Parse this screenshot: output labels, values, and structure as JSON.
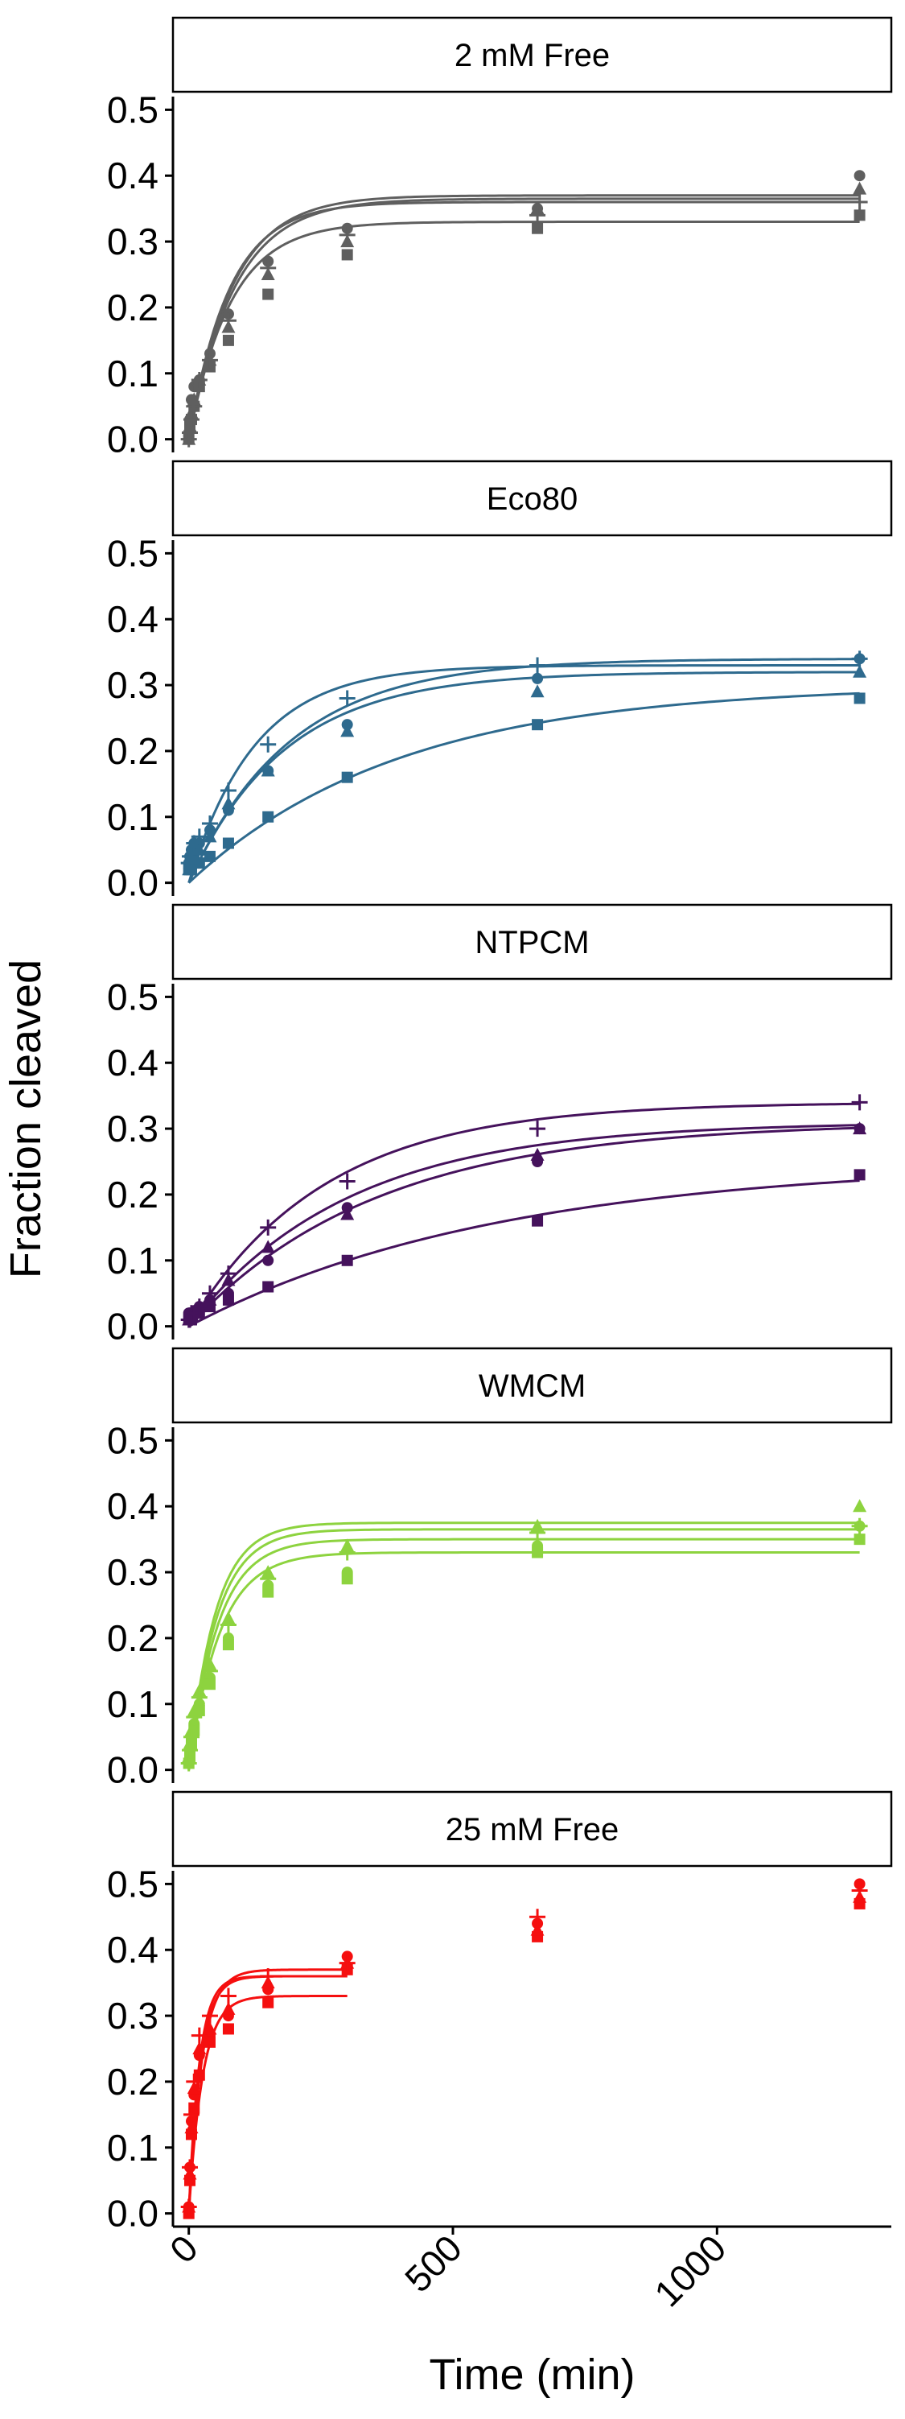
{
  "chart_data": {
    "type": "scatter",
    "xlabel": "Time (min)",
    "ylabel": "Fraction cleaved",
    "xlim": [
      -30,
      1330
    ],
    "ylim": [
      -0.02,
      0.52
    ],
    "x_ticks": [
      0,
      500,
      1000
    ],
    "y_ticks": [
      0.0,
      0.1,
      0.2,
      0.3,
      0.4,
      0.5
    ],
    "x_tick_labels": [
      "0",
      "500",
      "1000"
    ],
    "y_tick_labels": [
      "0.0",
      "0.1",
      "0.2",
      "0.3",
      "0.4",
      "0.5"
    ],
    "grid": false,
    "legend": "none",
    "marker_shapes": [
      "circle",
      "square",
      "triangle",
      "plus"
    ],
    "times": [
      0,
      2,
      5,
      10,
      20,
      40,
      75,
      150,
      300,
      660,
      1270
    ],
    "panels": [
      {
        "title": "2 mM Free",
        "color": "#5f5f5f",
        "series": [
          {
            "marker": "circle",
            "A": 0.37,
            "k": 0.012,
            "values": [
              0.0,
              0.03,
              0.06,
              0.08,
              0.09,
              0.13,
              0.19,
              0.27,
              0.32,
              0.35,
              0.4
            ]
          },
          {
            "marker": "square",
            "A": 0.33,
            "k": 0.0125,
            "values": [
              0.0,
              0.02,
              0.03,
              0.05,
              0.08,
              0.11,
              0.15,
              0.22,
              0.28,
              0.32,
              0.34
            ]
          },
          {
            "marker": "triangle",
            "A": 0.36,
            "k": 0.013,
            "values": [
              0.0,
              0.02,
              0.04,
              0.06,
              0.09,
              0.12,
              0.17,
              0.25,
              0.3,
              0.35,
              0.38
            ]
          },
          {
            "marker": "plus",
            "A": 0.365,
            "k": 0.0115,
            "values": [
              0.0,
              0.01,
              0.03,
              0.05,
              0.09,
              0.12,
              0.18,
              0.26,
              0.31,
              0.34,
              0.36
            ]
          }
        ]
      },
      {
        "title": "Eco80",
        "color": "#2e6a8e",
        "series": [
          {
            "marker": "circle",
            "A": 0.34,
            "k": 0.0052,
            "values": [
              0.03,
              0.04,
              0.05,
              0.06,
              0.06,
              0.08,
              0.11,
              0.17,
              0.24,
              0.31,
              0.34
            ]
          },
          {
            "marker": "square",
            "A": 0.3,
            "k": 0.0025,
            "values": [
              0.02,
              0.02,
              0.02,
              0.03,
              0.03,
              0.04,
              0.06,
              0.1,
              0.16,
              0.24,
              0.28
            ]
          },
          {
            "marker": "triangle",
            "A": 0.32,
            "k": 0.0055,
            "values": [
              0.02,
              0.03,
              0.04,
              0.04,
              0.05,
              0.07,
              0.12,
              0.17,
              0.23,
              0.29,
              0.32
            ]
          },
          {
            "marker": "plus",
            "A": 0.33,
            "k": 0.008,
            "values": [
              0.03,
              0.04,
              0.04,
              0.06,
              0.07,
              0.09,
              0.14,
              0.21,
              0.28,
              0.33,
              0.34
            ]
          }
        ]
      },
      {
        "title": "NTPCM",
        "color": "#45125c",
        "series": [
          {
            "marker": "circle",
            "A": 0.31,
            "k": 0.0028,
            "values": [
              0.02,
              0.02,
              0.02,
              0.02,
              0.03,
              0.04,
              0.05,
              0.1,
              0.18,
              0.25,
              0.3
            ]
          },
          {
            "marker": "square",
            "A": 0.25,
            "k": 0.0017,
            "values": [
              0.01,
              0.01,
              0.01,
              0.02,
              0.02,
              0.03,
              0.04,
              0.06,
              0.1,
              0.16,
              0.23
            ]
          },
          {
            "marker": "triangle",
            "A": 0.31,
            "k": 0.0033,
            "values": [
              0.01,
              0.01,
              0.02,
              0.02,
              0.03,
              0.04,
              0.07,
              0.12,
              0.17,
              0.26,
              0.3
            ]
          },
          {
            "marker": "plus",
            "A": 0.34,
            "k": 0.0039,
            "values": [
              0.01,
              0.01,
              0.02,
              0.02,
              0.03,
              0.05,
              0.08,
              0.15,
              0.22,
              0.3,
              0.34
            ]
          }
        ]
      },
      {
        "title": "WMCM",
        "color": "#8dd33f",
        "series": [
          {
            "marker": "circle",
            "A": 0.35,
            "k": 0.018,
            "values": [
              0.01,
              0.03,
              0.05,
              0.07,
              0.1,
              0.14,
              0.2,
              0.28,
              0.3,
              0.34,
              0.37
            ]
          },
          {
            "marker": "square",
            "A": 0.33,
            "k": 0.017,
            "values": [
              0.01,
              0.02,
              0.04,
              0.06,
              0.09,
              0.13,
              0.19,
              0.27,
              0.29,
              0.33,
              0.35
            ]
          },
          {
            "marker": "triangle",
            "A": 0.375,
            "k": 0.02,
            "values": [
              0.02,
              0.04,
              0.06,
              0.09,
              0.12,
              0.16,
              0.23,
              0.3,
              0.34,
              0.37,
              0.4
            ]
          },
          {
            "marker": "plus",
            "A": 0.365,
            "k": 0.019,
            "values": [
              0.01,
              0.03,
              0.05,
              0.08,
              0.11,
              0.15,
              0.22,
              0.29,
              0.33,
              0.36,
              0.37
            ]
          }
        ]
      },
      {
        "title": "25 mM Free",
        "color": "#f50f0f",
        "fit_x_max": 300,
        "series": [
          {
            "marker": "circle",
            "A": 0.36,
            "k": 0.045,
            "values": [
              0.01,
              0.07,
              0.14,
              0.18,
              0.24,
              0.27,
              0.3,
              0.34,
              0.39,
              0.44,
              0.5
            ]
          },
          {
            "marker": "square",
            "A": 0.33,
            "k": 0.038,
            "values": [
              0.0,
              0.05,
              0.12,
              0.16,
              0.21,
              0.26,
              0.28,
              0.32,
              0.37,
              0.42,
              0.47
            ]
          },
          {
            "marker": "triangle",
            "A": 0.37,
            "k": 0.04,
            "values": [
              0.01,
              0.06,
              0.13,
              0.19,
              0.25,
              0.28,
              0.31,
              0.35,
              0.38,
              0.43,
              0.48
            ]
          },
          {
            "marker": "plus",
            "A": 0.36,
            "k": 0.05,
            "values": [
              0.01,
              0.07,
              0.15,
              0.2,
              0.27,
              0.3,
              0.33,
              0.36,
              0.38,
              0.45,
              0.49
            ]
          }
        ]
      }
    ]
  }
}
